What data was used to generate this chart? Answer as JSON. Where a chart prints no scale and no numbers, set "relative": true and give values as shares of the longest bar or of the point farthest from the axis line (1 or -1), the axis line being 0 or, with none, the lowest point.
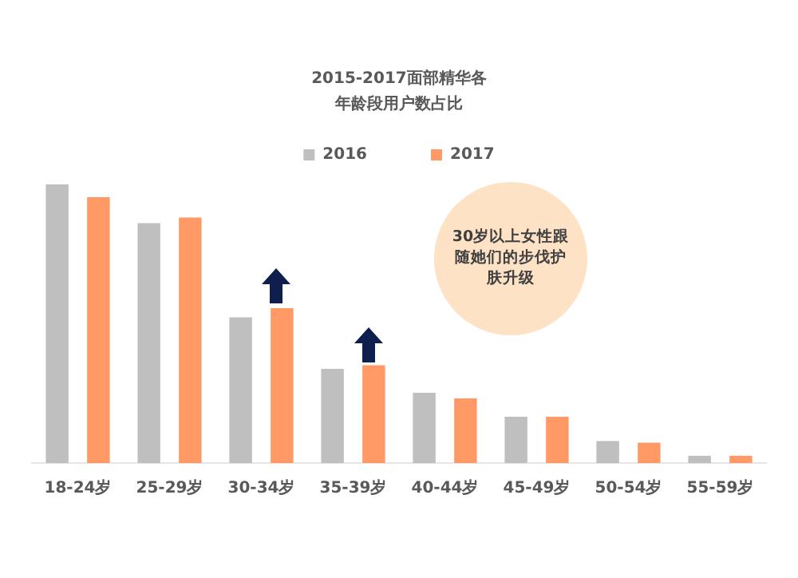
{
  "chart_data": {
    "type": "bar",
    "title": "2015-2017面部精华各年龄段用户数占比",
    "categories": [
      "18-24岁",
      "25-29岁",
      "30-34岁",
      "35-39岁",
      "40-44岁",
      "45-49岁",
      "50-54岁",
      "55-59岁"
    ],
    "series": [
      {
        "name": "2016",
        "color": "#bfbfbf",
        "values": [
          1,
          0.861,
          0.523,
          0.338,
          0.252,
          0.166,
          0.079,
          0.026
        ]
      },
      {
        "name": "2017",
        "color": "#ff9a66",
        "values": [
          0.954,
          0.881,
          0.556,
          0.351,
          0.232,
          0.166,
          0.073,
          0.026
        ]
      }
    ],
    "relative": true,
    "legend": "top",
    "grid": false,
    "annotations": [
      "30岁以上女性跟随她们的步伐护肤升级"
    ]
  }
}
